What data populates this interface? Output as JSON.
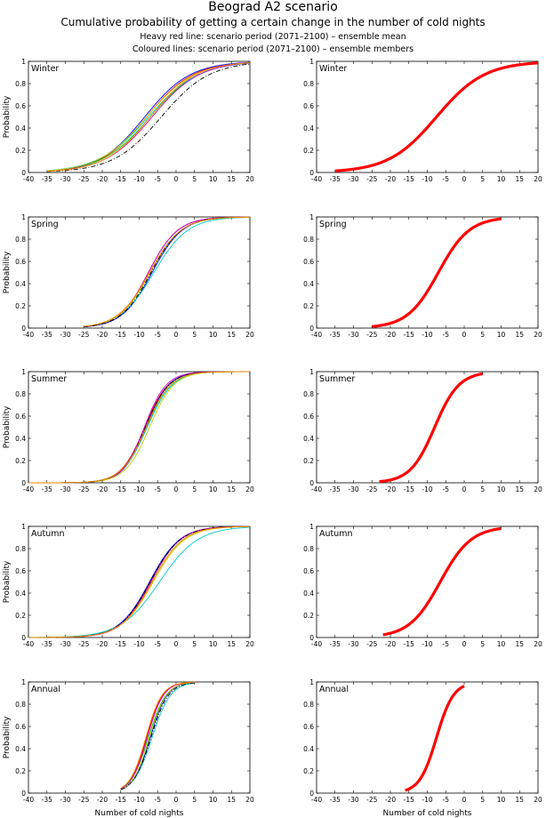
{
  "header": {
    "title": "Beograd A2 scenario",
    "subtitle": "Cumulative probability of getting a certain change in the number of cold nights",
    "note1": "Heavy red line: scenario period (2071–2100) – ensemble mean",
    "note2": "Coloured lines: scenario period (2071–2100) – ensemble members"
  },
  "colors": {
    "mean": "#ff0000",
    "members": [
      "#ff0000",
      "#00cc00",
      "#0000ff",
      "#00cccc",
      "#cc00cc",
      "#cccc00",
      "#000000",
      "#ff8800"
    ]
  },
  "chart_data": [
    {
      "type": "line",
      "panel": "left",
      "label": "Winter",
      "ylabel": "Probability",
      "xlabel": "",
      "xlim": [
        -40,
        20
      ],
      "ylim": [
        0,
        1
      ],
      "xticks": [
        -40,
        -35,
        -30,
        -25,
        -20,
        -15,
        -10,
        -5,
        0,
        5,
        10,
        15,
        20
      ],
      "yticks": [
        0,
        0.2,
        0.4,
        0.6,
        0.8,
        1
      ],
      "cdf_params": {
        "center": -7.5,
        "spread": 6.5,
        "member_centers": [
          -8,
          -7,
          -8.5,
          -7.5,
          -6.5,
          -8,
          -4,
          -7
        ],
        "member_spreads": [
          6.3,
          6.6,
          6.2,
          6.8,
          6.4,
          6.5,
          6.5,
          6.2
        ],
        "x_range": [
          -35,
          20
        ]
      }
    },
    {
      "type": "line",
      "panel": "right",
      "label": "Winter",
      "ylabel": "",
      "xlabel": "",
      "xlim": [
        -40,
        20
      ],
      "ylim": [
        0,
        1
      ],
      "xticks": [
        -40,
        -35,
        -30,
        -25,
        -20,
        -15,
        -10,
        -5,
        0,
        5,
        10,
        15,
        20
      ],
      "yticks": [
        0,
        0.2,
        0.4,
        0.6,
        0.8,
        1
      ],
      "cdf_params": {
        "center": -7.5,
        "spread": 6.5,
        "x_range": [
          -35,
          20
        ]
      }
    },
    {
      "type": "line",
      "panel": "left",
      "label": "Spring",
      "ylabel": "Probability",
      "xlabel": "",
      "xlim": [
        -40,
        20
      ],
      "ylim": [
        0,
        1
      ],
      "xticks": [
        -40,
        -35,
        -30,
        -25,
        -20,
        -15,
        -10,
        -5,
        0,
        5,
        10,
        15,
        20
      ],
      "yticks": [
        0,
        0.2,
        0.4,
        0.6,
        0.8,
        1
      ],
      "cdf_params": {
        "center": -7,
        "spread": 4.2,
        "member_centers": [
          -7.5,
          -7,
          -6.5,
          -6,
          -7.5,
          -7,
          -6.8,
          -7.2
        ],
        "member_spreads": [
          4.0,
          4.3,
          4.1,
          4.6,
          4.0,
          4.2,
          4.1,
          4.3
        ],
        "x_range": [
          -25,
          20
        ]
      }
    },
    {
      "type": "line",
      "panel": "right",
      "label": "Spring",
      "ylabel": "",
      "xlabel": "",
      "xlim": [
        -40,
        20
      ],
      "ylim": [
        0,
        1
      ],
      "xticks": [
        -40,
        -35,
        -30,
        -25,
        -20,
        -15,
        -10,
        -5,
        0,
        5,
        10,
        15,
        20
      ],
      "yticks": [
        0,
        0.2,
        0.4,
        0.6,
        0.8,
        1
      ],
      "cdf_params": {
        "center": -7,
        "spread": 4.2,
        "x_range": [
          -25,
          10
        ]
      }
    },
    {
      "type": "line",
      "panel": "left",
      "label": "Summer",
      "ylabel": "Probability",
      "xlabel": "",
      "xlim": [
        -40,
        20
      ],
      "ylim": [
        0,
        1
      ],
      "xticks": [
        -40,
        -35,
        -30,
        -25,
        -20,
        -15,
        -10,
        -5,
        0,
        5,
        10,
        15,
        20
      ],
      "yticks": [
        0,
        0.2,
        0.4,
        0.6,
        0.8,
        1
      ],
      "cdf_params": {
        "center": -8,
        "spread": 3.3,
        "member_centers": [
          -8.5,
          -8,
          -8.2,
          -7.8,
          -8.6,
          -7.2,
          -8.3,
          -8.1
        ],
        "member_spreads": [
          3.2,
          3.3,
          3.1,
          3.4,
          3.0,
          3.3,
          3.2,
          3.3
        ],
        "x_range": [
          -40,
          20
        ]
      }
    },
    {
      "type": "line",
      "panel": "right",
      "label": "Summer",
      "ylabel": "",
      "xlabel": "",
      "xlim": [
        -40,
        20
      ],
      "ylim": [
        0,
        1
      ],
      "xticks": [
        -40,
        -35,
        -30,
        -25,
        -20,
        -15,
        -10,
        -5,
        0,
        5,
        10,
        15,
        20
      ],
      "yticks": [
        0,
        0.2,
        0.4,
        0.6,
        0.8,
        1
      ],
      "cdf_params": {
        "center": -8,
        "spread": 3.3,
        "x_range": [
          -23,
          5
        ]
      }
    },
    {
      "type": "line",
      "panel": "left",
      "label": "Autumn",
      "ylabel": "Probability",
      "xlabel": "",
      "xlim": [
        -40,
        20
      ],
      "ylim": [
        0,
        1
      ],
      "xticks": [
        -40,
        -35,
        -30,
        -25,
        -20,
        -15,
        -10,
        -5,
        0,
        5,
        10,
        15,
        20
      ],
      "yticks": [
        0,
        0.2,
        0.4,
        0.6,
        0.8,
        1
      ],
      "cdf_params": {
        "center": -6.5,
        "spread": 4.2,
        "member_centers": [
          -7,
          -6.5,
          -7.2,
          -4.5,
          -6.8,
          -6.2,
          -7,
          -6.5
        ],
        "member_spreads": [
          4.0,
          4.2,
          4.1,
          5.2,
          4.0,
          4.3,
          4.1,
          4.2
        ],
        "x_range": [
          -40,
          20
        ]
      }
    },
    {
      "type": "line",
      "panel": "right",
      "label": "Autumn",
      "ylabel": "",
      "xlabel": "",
      "xlim": [
        -40,
        20
      ],
      "ylim": [
        0,
        1
      ],
      "xticks": [
        -40,
        -35,
        -30,
        -25,
        -20,
        -15,
        -10,
        -5,
        0,
        5,
        10,
        15,
        20
      ],
      "yticks": [
        0,
        0.2,
        0.4,
        0.6,
        0.8,
        1
      ],
      "cdf_params": {
        "center": -6.5,
        "spread": 4.2,
        "x_range": [
          -22,
          10
        ]
      }
    },
    {
      "type": "line",
      "panel": "left",
      "label": "Annual",
      "ylabel": "Probability",
      "xlabel": "Number of cold nights",
      "xlim": [
        -40,
        20
      ],
      "ylim": [
        0,
        1
      ],
      "xticks": [
        -40,
        -35,
        -30,
        -25,
        -20,
        -15,
        -10,
        -5,
        0,
        5,
        10,
        15,
        20
      ],
      "yticks": [
        0,
        0.2,
        0.4,
        0.6,
        0.8,
        1
      ],
      "cdf_params": {
        "center": -7.5,
        "spread": 2.3,
        "member_centers": [
          -8,
          -7.5,
          -7,
          -6.5,
          -7.8,
          -7.2,
          -6.8,
          -8.2
        ],
        "member_spreads": [
          2.2,
          2.4,
          2.3,
          2.5,
          2.2,
          2.3,
          2.4,
          2.2
        ],
        "x_range": [
          -15,
          5
        ]
      }
    },
    {
      "type": "line",
      "panel": "right",
      "label": "Annual",
      "ylabel": "",
      "xlabel": "Number of cold nights",
      "xlim": [
        -40,
        20
      ],
      "ylim": [
        0,
        1
      ],
      "xticks": [
        -40,
        -35,
        -30,
        -25,
        -20,
        -15,
        -10,
        -5,
        0,
        5,
        10,
        15,
        20
      ],
      "yticks": [
        0,
        0.2,
        0.4,
        0.6,
        0.8,
        1
      ],
      "cdf_params": {
        "center": -7.5,
        "spread": 2.3,
        "x_range": [
          -16,
          0
        ]
      }
    }
  ]
}
